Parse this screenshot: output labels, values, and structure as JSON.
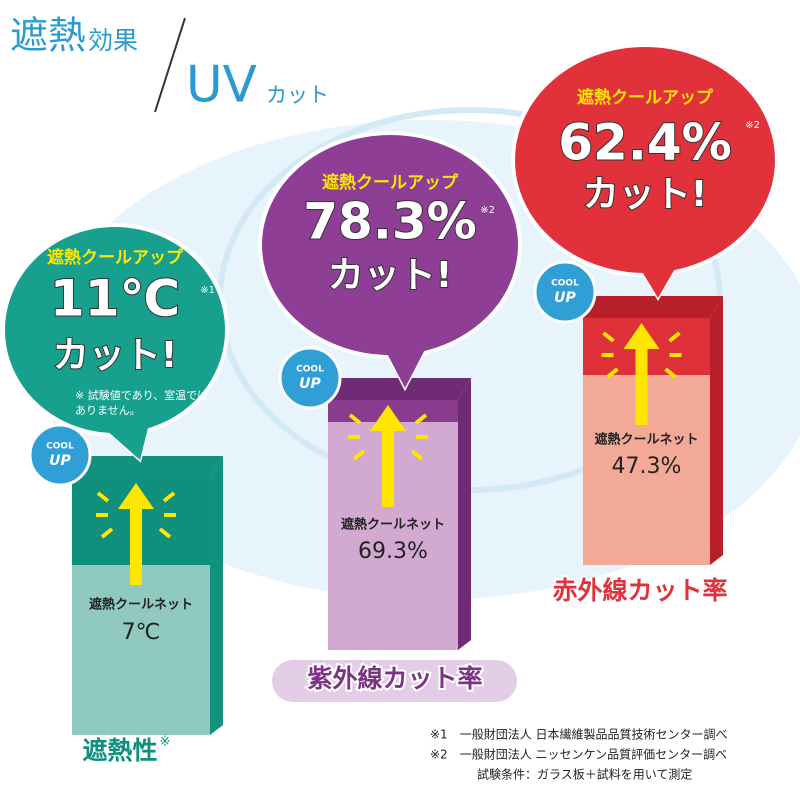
{
  "header": {
    "title_main": "遮熱",
    "title_sub": "効果",
    "title_uv": "UV",
    "title_cut": "カット"
  },
  "panels": [
    {
      "brand": "遮熱クールアップ",
      "value": "11℃",
      "note_mark": "※1",
      "cut": "カット!",
      "note": [
        "※ 試験値であり、室温では",
        "ありません。"
      ],
      "badge": [
        "COOL",
        "UP"
      ],
      "product": "遮熱クールネット",
      "product_value": "7℃",
      "caption": "遮熱性",
      "caption_mark": "※"
    },
    {
      "brand": "遮熱クールアップ",
      "value": "78.3%",
      "note_mark": "※2",
      "cut": "カット!",
      "badge": [
        "COOL",
        "UP"
      ],
      "product": "遮熱クールネット",
      "product_value": "69.3%",
      "caption": "紫外線カット率"
    },
    {
      "brand": "遮熱クールアップ",
      "value": "62.4%",
      "note_mark": "※2",
      "cut": "カット!",
      "badge": [
        "COOL",
        "UP"
      ],
      "product": "遮熱クールネット",
      "product_value": "47.3%",
      "caption": "赤外線カット率"
    }
  ],
  "footnotes": [
    "※1　一般財団法人 日本繊維製品品質技術センター調べ",
    "※2　一般財団法人 ニッセンケン品質評価センター調べ",
    "試験条件：ガラス板＋試料を用いて測定"
  ]
}
